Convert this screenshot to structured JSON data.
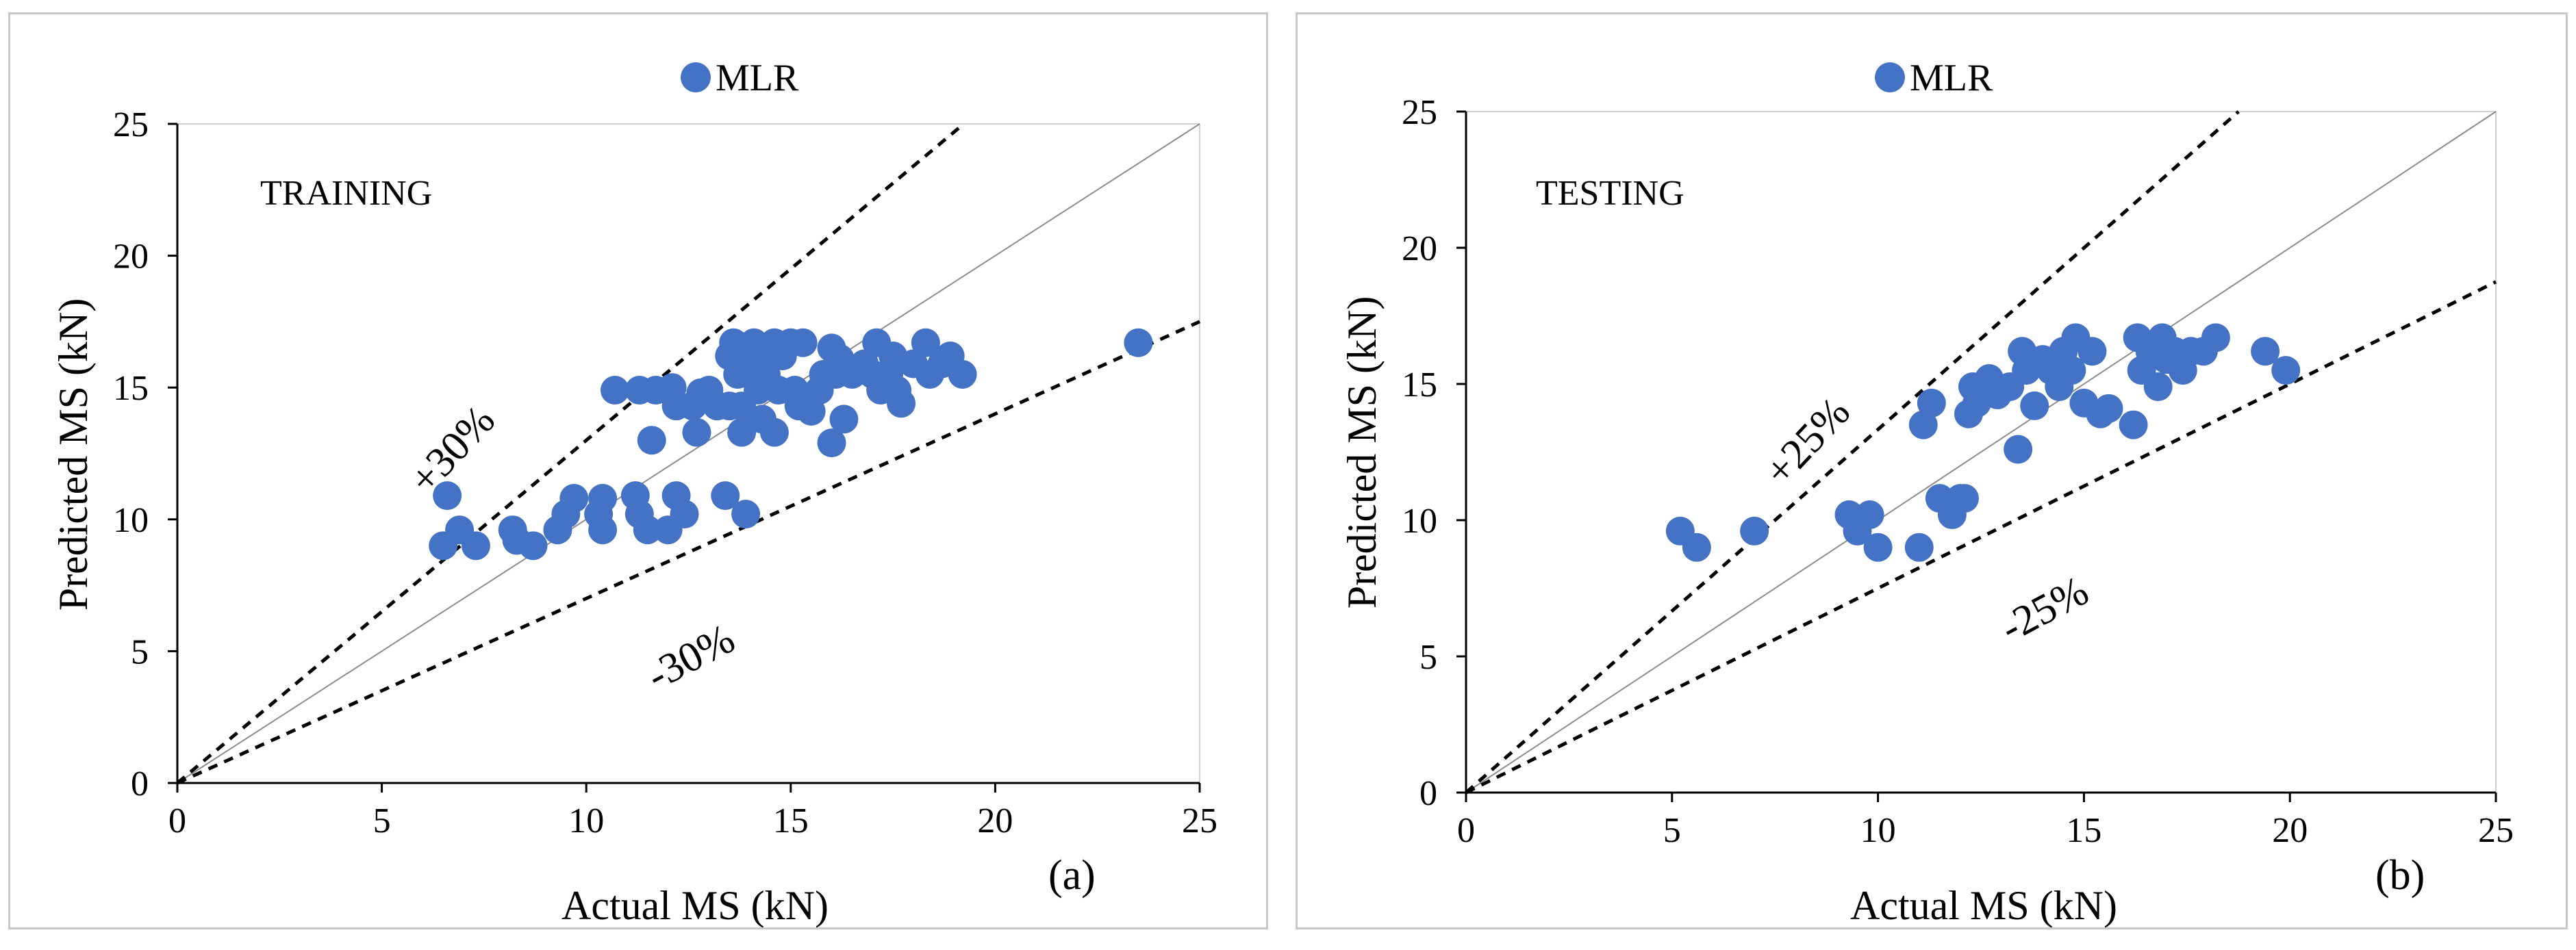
{
  "chart_data": [
    {
      "type": "scatter",
      "id": "a",
      "panel_label": "(a)",
      "annotation": "TRAINING",
      "legend": "MLR",
      "xlabel": "Actual MS (kN)",
      "ylabel": "Predicted MS (kN)",
      "xlim": [
        0,
        25
      ],
      "ylim": [
        0,
        25
      ],
      "xticks": [
        0,
        5,
        10,
        15,
        20,
        25
      ],
      "yticks": [
        0,
        5,
        10,
        15,
        20,
        25
      ],
      "upper_label": "+30%",
      "lower_label": "-30%",
      "upper_slope": 1.3,
      "lower_slope": 0.7,
      "marker_color": "#4472c4",
      "points": [
        [
          6.5,
          9.0
        ],
        [
          6.6,
          10.9
        ],
        [
          6.9,
          9.6
        ],
        [
          7.3,
          9.0
        ],
        [
          8.2,
          9.6
        ],
        [
          8.3,
          9.2
        ],
        [
          8.7,
          9.0
        ],
        [
          9.3,
          9.6
        ],
        [
          9.5,
          10.2
        ],
        [
          9.7,
          10.8
        ],
        [
          10.3,
          10.2
        ],
        [
          10.4,
          10.8
        ],
        [
          10.4,
          9.6
        ],
        [
          10.7,
          14.9
        ],
        [
          11.2,
          10.9
        ],
        [
          11.3,
          10.2
        ],
        [
          11.3,
          14.9
        ],
        [
          11.5,
          9.6
        ],
        [
          11.6,
          13.0
        ],
        [
          11.7,
          14.9
        ],
        [
          12.0,
          9.6
        ],
        [
          12.1,
          15.0
        ],
        [
          12.2,
          10.9
        ],
        [
          12.2,
          14.3
        ],
        [
          12.4,
          10.2
        ],
        [
          12.6,
          14.3
        ],
        [
          12.7,
          13.3
        ],
        [
          12.8,
          14.8
        ],
        [
          13.0,
          14.9
        ],
        [
          13.2,
          14.3
        ],
        [
          13.4,
          10.9
        ],
        [
          13.5,
          14.3
        ],
        [
          13.5,
          16.2
        ],
        [
          13.6,
          16.7
        ],
        [
          13.7,
          15.5
        ],
        [
          13.8,
          13.3
        ],
        [
          13.8,
          14.3
        ],
        [
          13.9,
          10.2
        ],
        [
          14.0,
          15.5
        ],
        [
          14.0,
          16.2
        ],
        [
          14.1,
          16.7
        ],
        [
          14.2,
          14.9
        ],
        [
          14.3,
          13.8
        ],
        [
          14.4,
          15.5
        ],
        [
          14.5,
          16.2
        ],
        [
          14.6,
          16.7
        ],
        [
          14.6,
          13.3
        ],
        [
          14.7,
          14.9
        ],
        [
          14.8,
          16.2
        ],
        [
          15.0,
          16.7
        ],
        [
          15.1,
          14.9
        ],
        [
          15.2,
          14.3
        ],
        [
          15.3,
          16.7
        ],
        [
          15.5,
          14.1
        ],
        [
          15.7,
          14.9
        ],
        [
          15.8,
          15.5
        ],
        [
          16.0,
          16.5
        ],
        [
          16.0,
          12.9
        ],
        [
          16.1,
          15.5
        ],
        [
          16.2,
          16.1
        ],
        [
          16.3,
          13.8
        ],
        [
          16.5,
          15.5
        ],
        [
          16.8,
          15.9
        ],
        [
          17.0,
          15.5
        ],
        [
          17.1,
          16.7
        ],
        [
          17.2,
          14.9
        ],
        [
          17.4,
          15.5
        ],
        [
          17.5,
          16.2
        ],
        [
          17.6,
          14.9
        ],
        [
          17.7,
          14.4
        ],
        [
          18.0,
          15.9
        ],
        [
          18.3,
          16.7
        ],
        [
          18.4,
          15.5
        ],
        [
          18.7,
          15.9
        ],
        [
          18.9,
          16.2
        ],
        [
          19.2,
          15.5
        ],
        [
          23.5,
          16.7
        ]
      ]
    },
    {
      "type": "scatter",
      "id": "b",
      "panel_label": "(b)",
      "annotation": "TESTING",
      "legend": "MLR",
      "xlabel": "Actual MS (kN)",
      "ylabel": "Predicted MS (kN)",
      "xlim": [
        0,
        25
      ],
      "ylim": [
        0,
        25
      ],
      "xticks": [
        0,
        5,
        10,
        15,
        20,
        25
      ],
      "yticks": [
        0,
        5,
        10,
        15,
        20,
        25
      ],
      "upper_label": "+25%",
      "lower_label": "-25%",
      "upper_slope": 1.333,
      "lower_slope": 0.75,
      "marker_color": "#4472c4",
      "points": [
        [
          5.2,
          9.6
        ],
        [
          5.6,
          9.0
        ],
        [
          7.0,
          9.6
        ],
        [
          9.3,
          10.2
        ],
        [
          9.5,
          9.6
        ],
        [
          9.8,
          10.2
        ],
        [
          10.0,
          9.0
        ],
        [
          11.0,
          9.0
        ],
        [
          11.1,
          13.5
        ],
        [
          11.3,
          14.3
        ],
        [
          11.5,
          10.8
        ],
        [
          11.8,
          10.2
        ],
        [
          12.0,
          10.8
        ],
        [
          12.1,
          10.8
        ],
        [
          12.2,
          13.9
        ],
        [
          12.3,
          14.9
        ],
        [
          12.4,
          14.3
        ],
        [
          12.7,
          15.2
        ],
        [
          12.9,
          14.6
        ],
        [
          13.2,
          14.9
        ],
        [
          13.4,
          12.6
        ],
        [
          13.5,
          16.2
        ],
        [
          13.6,
          15.5
        ],
        [
          13.8,
          14.2
        ],
        [
          14.0,
          15.9
        ],
        [
          14.2,
          15.5
        ],
        [
          14.4,
          14.9
        ],
        [
          14.5,
          16.2
        ],
        [
          14.7,
          15.5
        ],
        [
          14.8,
          16.7
        ],
        [
          15.0,
          14.3
        ],
        [
          15.2,
          16.2
        ],
        [
          15.4,
          13.9
        ],
        [
          15.6,
          14.1
        ],
        [
          16.2,
          13.5
        ],
        [
          16.3,
          16.7
        ],
        [
          16.4,
          15.5
        ],
        [
          16.6,
          16.2
        ],
        [
          16.8,
          14.9
        ],
        [
          16.9,
          16.7
        ],
        [
          17.0,
          15.9
        ],
        [
          17.2,
          16.2
        ],
        [
          17.4,
          15.5
        ],
        [
          17.6,
          16.2
        ],
        [
          17.9,
          16.2
        ],
        [
          18.2,
          16.7
        ],
        [
          19.4,
          16.2
        ],
        [
          19.9,
          15.5
        ]
      ]
    }
  ]
}
